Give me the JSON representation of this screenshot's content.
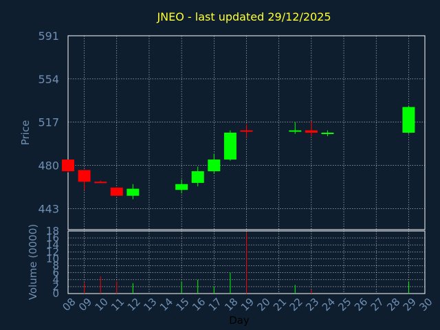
{
  "chart_data": {
    "type": "candlestick",
    "title": "JNEO - last updated 29/12/2025",
    "price_panel": {
      "ylabel": "Price",
      "ylim": [
        425,
        591
      ],
      "yticks": [
        443,
        480,
        517,
        554,
        591
      ]
    },
    "volume_panel": {
      "ylabel": "Volume (0000)",
      "ylim": [
        0,
        18
      ],
      "yticks": [
        0,
        2,
        4,
        6,
        8,
        10,
        12,
        14,
        16,
        18
      ]
    },
    "xlabel": "Day",
    "xticks": [
      "08",
      "09",
      "10",
      "11",
      "12",
      "13",
      "14",
      "15",
      "16",
      "17",
      "18",
      "19",
      "20",
      "21",
      "22",
      "23",
      "24",
      "25",
      "26",
      "27",
      "28",
      "29",
      "30"
    ],
    "colors": {
      "up": "#00ff00",
      "down": "#ff0000",
      "grid": "#ffffff",
      "axis": "#6f8fb3",
      "title": "#ffff33",
      "background": "#0f1e2e"
    },
    "candles": [
      {
        "day": "08",
        "open": 485,
        "high": 485,
        "low": 474,
        "close": 475
      },
      {
        "day": "09",
        "open": 476,
        "high": 476,
        "low": 459,
        "close": 466
      },
      {
        "day": "10",
        "open": 466,
        "high": 467,
        "low": 465,
        "close": 465
      },
      {
        "day": "11",
        "open": 461,
        "high": 461,
        "low": 454,
        "close": 454
      },
      {
        "day": "12",
        "open": 454,
        "high": 464,
        "low": 451,
        "close": 460
      },
      {
        "day": "15",
        "open": 459,
        "high": 468,
        "low": 456,
        "close": 464
      },
      {
        "day": "16",
        "open": 465,
        "high": 479,
        "low": 462,
        "close": 475
      },
      {
        "day": "17",
        "open": 475,
        "high": 490,
        "low": 473,
        "close": 485
      },
      {
        "day": "18",
        "open": 485,
        "high": 510,
        "low": 484,
        "close": 508
      },
      {
        "day": "19",
        "open": 510,
        "high": 515,
        "low": 504,
        "close": 509
      },
      {
        "day": "22",
        "open": 509,
        "high": 517,
        "low": 507,
        "close": 510
      },
      {
        "day": "23",
        "open": 510,
        "high": 518,
        "low": 505,
        "close": 508
      },
      {
        "day": "24",
        "open": 507,
        "high": 510,
        "low": 505,
        "close": 508
      },
      {
        "day": "29",
        "open": 508,
        "high": 531,
        "low": 507,
        "close": 530
      }
    ],
    "volume": [
      {
        "day": "09",
        "value": 3,
        "dir": "down"
      },
      {
        "day": "10",
        "value": 5,
        "dir": "down"
      },
      {
        "day": "11",
        "value": 3.5,
        "dir": "down"
      },
      {
        "day": "12",
        "value": 3,
        "dir": "up"
      },
      {
        "day": "15",
        "value": 3.5,
        "dir": "up"
      },
      {
        "day": "16",
        "value": 4,
        "dir": "up"
      },
      {
        "day": "17",
        "value": 2,
        "dir": "up"
      },
      {
        "day": "18",
        "value": 6,
        "dir": "up"
      },
      {
        "day": "19",
        "value": 17.5,
        "dir": "down"
      },
      {
        "day": "22",
        "value": 2.5,
        "dir": "up"
      },
      {
        "day": "23",
        "value": 1,
        "dir": "down"
      },
      {
        "day": "29",
        "value": 3.5,
        "dir": "up"
      }
    ]
  }
}
